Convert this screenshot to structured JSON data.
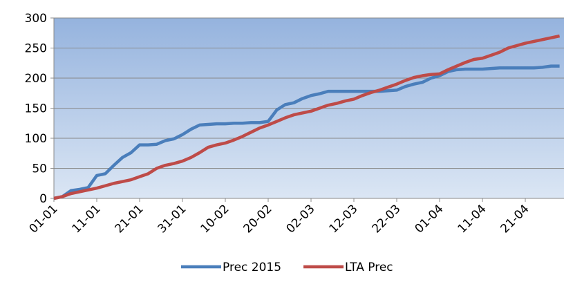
{
  "chart_data": {
    "type": "line",
    "categories": [
      "01-01",
      null,
      null,
      null,
      null,
      "11-01",
      null,
      null,
      null,
      null,
      "21-01",
      null,
      null,
      null,
      null,
      "31-01",
      null,
      null,
      null,
      null,
      "10-02",
      null,
      null,
      null,
      null,
      "20-02",
      null,
      null,
      null,
      null,
      "02-03",
      null,
      null,
      null,
      null,
      "12-03",
      null,
      null,
      null,
      null,
      "22-03",
      null,
      null,
      null,
      null,
      "01-04",
      null,
      null,
      null,
      null,
      "11-04",
      null,
      null,
      null,
      null,
      "21-04",
      null,
      null,
      null,
      null
    ],
    "series": [
      {
        "name": "Prec 2015",
        "color": "#4a7ebb",
        "values": [
          0,
          3,
          13,
          15,
          18,
          38,
          41,
          55,
          68,
          76,
          89,
          89,
          90,
          96,
          99,
          106,
          115,
          122,
          123,
          124,
          124,
          125,
          125,
          126,
          126,
          128,
          147,
          156,
          159,
          166,
          171,
          174,
          178,
          178,
          178,
          178,
          178,
          178,
          178,
          179,
          180,
          186,
          190,
          193,
          200,
          204,
          211,
          214,
          215,
          215,
          215,
          216,
          217,
          217,
          217,
          217,
          217,
          218,
          220,
          220
        ]
      },
      {
        "name": "LTA Prec",
        "color": "#be4b48",
        "values": [
          0,
          3,
          8,
          11,
          14,
          17,
          21,
          25,
          28,
          31,
          36,
          41,
          50,
          55,
          58,
          62,
          68,
          76,
          85,
          89,
          92,
          97,
          103,
          110,
          117,
          122,
          128,
          134,
          139,
          142,
          145,
          150,
          155,
          158,
          162,
          165,
          171,
          176,
          180,
          185,
          190,
          196,
          201,
          204,
          206,
          207,
          214,
          220,
          226,
          231,
          233,
          238,
          243,
          250,
          254,
          258,
          261,
          264,
          267,
          270
        ]
      }
    ],
    "ylim": [
      0,
      300
    ],
    "yticks": [
      0,
      50,
      100,
      150,
      200,
      250,
      300
    ],
    "grid": true,
    "legend": "bottom"
  }
}
